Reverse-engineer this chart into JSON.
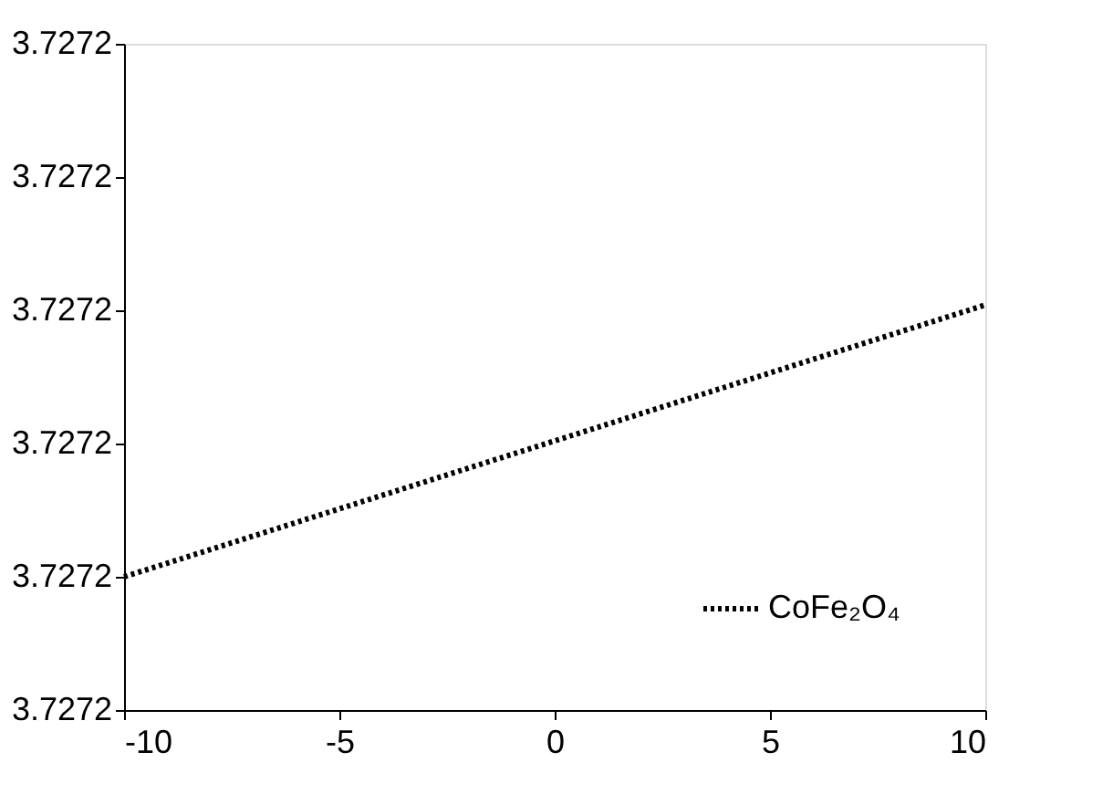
{
  "chart_data": {
    "type": "line",
    "x": [
      -10,
      10
    ],
    "series": [
      {
        "name": "CoFe₂O₄",
        "color": "#000000",
        "values": [
          3.72721,
          3.7272304
        ]
      }
    ],
    "xlim": [
      -10,
      10
    ],
    "xticks": [
      -10,
      -5,
      0,
      5,
      10
    ],
    "ylim": [
      3.7272,
      3.72725
    ],
    "yticks": [
      {
        "value": 3.7272,
        "label": "3.7272"
      },
      {
        "value": 3.72721,
        "label": "3.7272"
      },
      {
        "value": 3.72722,
        "label": "3.7272"
      },
      {
        "value": 3.72723,
        "label": "3.7272"
      },
      {
        "value": 3.72724,
        "label": "3.7272"
      },
      {
        "value": 3.72725,
        "label": "3.7272"
      }
    ],
    "grid": false,
    "legend": "bottom right",
    "line_style": "dotted",
    "marker": "none"
  }
}
